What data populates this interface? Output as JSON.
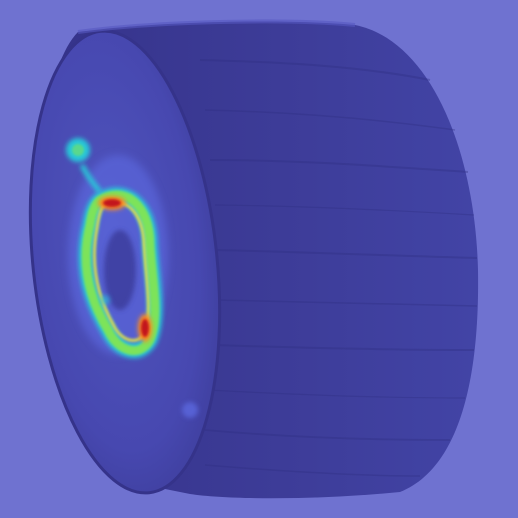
{
  "image": {
    "subject": "wooden-cylinder-disc-with-attention-heatmap",
    "colors": {
      "background": "#6f72d0",
      "wood_side": "#3b3a94",
      "wood_face": "#4a4cb3",
      "heat_cool": "#5e6de6",
      "heat_cyan": "#27c8d8",
      "heat_green": "#7de35a",
      "heat_yellow": "#f2e83a",
      "heat_orange": "#ff8a1f",
      "heat_red": "#c3171c"
    }
  }
}
